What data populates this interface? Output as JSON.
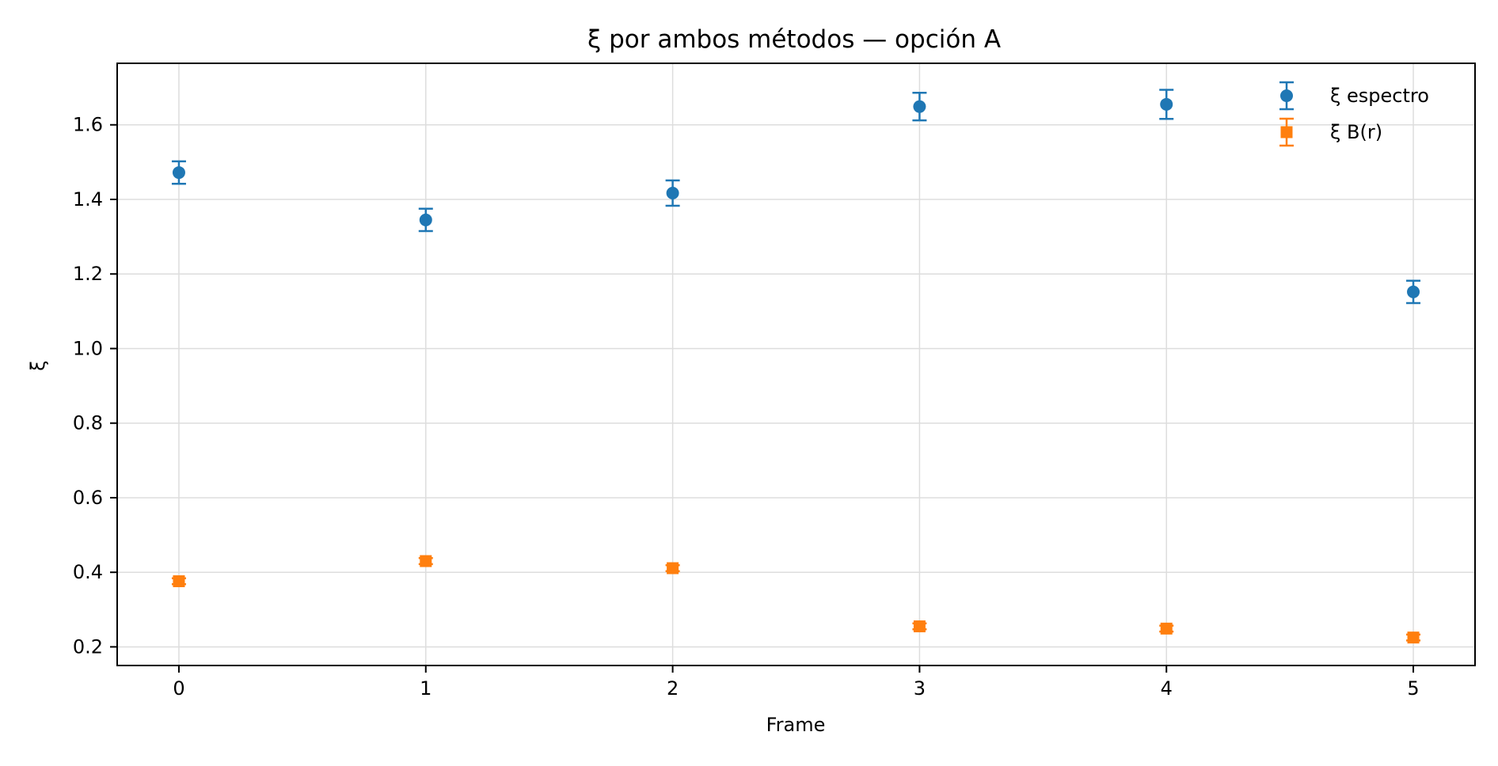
{
  "chart_data": {
    "type": "scatter",
    "title": "ξ por ambos métodos — opción A",
    "xlabel": "Frame",
    "ylabel": "ξ",
    "x": [
      0,
      1,
      2,
      3,
      4,
      5
    ],
    "xlim": [
      -0.25,
      5.25
    ],
    "ylim": [
      0.15,
      1.765
    ],
    "xticks": [
      0,
      1,
      2,
      3,
      4,
      5
    ],
    "yticks": [
      0.2,
      0.4,
      0.6,
      0.8,
      1.0,
      1.2,
      1.4,
      1.6
    ],
    "ytick_labels": [
      "0.2",
      "0.4",
      "0.6",
      "0.8",
      "1.0",
      "1.2",
      "1.4",
      "1.6"
    ],
    "grid": true,
    "legend_position": "top-right",
    "series": [
      {
        "name": "ξ espectro",
        "marker": "circle",
        "color": "#1f77b4",
        "values": [
          1.472,
          1.345,
          1.417,
          1.649,
          1.655,
          1.152
        ],
        "errors": [
          0.03,
          0.03,
          0.034,
          0.037,
          0.039,
          0.03
        ]
      },
      {
        "name": "ξ B(r)",
        "marker": "square",
        "color": "#ff7f0e",
        "values": [
          0.376,
          0.43,
          0.411,
          0.255,
          0.249,
          0.225
        ],
        "errors": [
          0.008,
          0.008,
          0.008,
          0.008,
          0.008,
          0.008
        ]
      }
    ]
  }
}
